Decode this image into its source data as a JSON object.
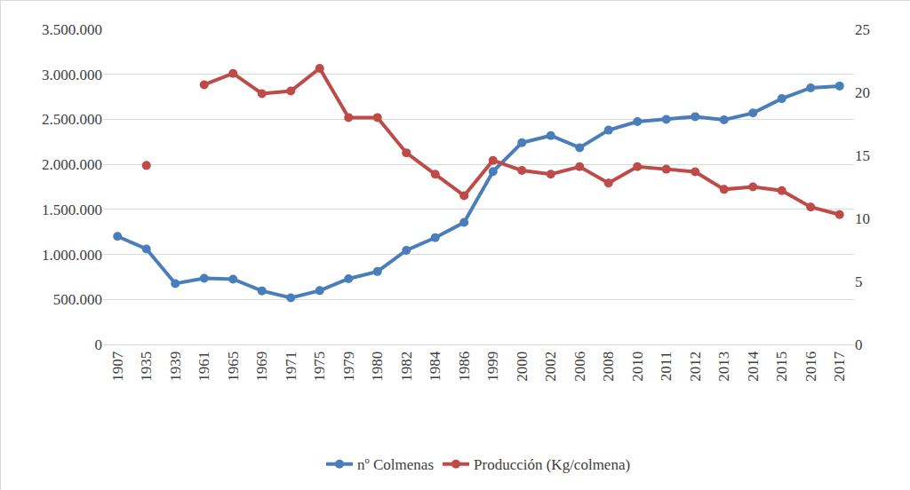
{
  "chart_data": {
    "type": "line",
    "categories": [
      "1907",
      "1935",
      "1939",
      "1961",
      "1965",
      "1969",
      "1971",
      "1975",
      "1979",
      "1980",
      "1982",
      "1984",
      "1986",
      "1999",
      "2000",
      "2002",
      "2006",
      "2008",
      "2010",
      "2011",
      "2012",
      "2013",
      "2014",
      "2015",
      "2016",
      "2017"
    ],
    "series": [
      {
        "name": "nº Colmenas",
        "color": "#4a7ebb",
        "marker": "circle",
        "axis": "y",
        "values": [
          1200000,
          1060000,
          676000,
          735000,
          725000,
          595000,
          518000,
          598000,
          730000,
          810000,
          1045000,
          1185000,
          1355000,
          1920000,
          2240000,
          2320000,
          2185000,
          2380000,
          2475000,
          2500000,
          2530000,
          2495000,
          2570000,
          2730000,
          2850000,
          2870000
        ]
      },
      {
        "name": "Producción (Kg/colmena)",
        "color": "#be4b48",
        "marker": "circle",
        "axis": "y2",
        "values": [
          null,
          14.2,
          null,
          20.6,
          21.5,
          19.9,
          20.1,
          21.9,
          18.0,
          18.0,
          15.2,
          13.5,
          11.8,
          14.6,
          13.8,
          13.5,
          14.1,
          12.8,
          14.1,
          13.9,
          13.7,
          12.3,
          12.5,
          12.2,
          10.9,
          10.3
        ]
      }
    ],
    "ylim": [
      0,
      3500000
    ],
    "yticks": [
      0,
      {
        "value": 500000,
        "label": "500.000"
      },
      {
        "value": 1000000,
        "label": "1.000.000"
      },
      {
        "value": 1500000,
        "label": "1.500.000"
      },
      {
        "value": 2000000,
        "label": "2.000.000"
      },
      {
        "value": 2500000,
        "label": "2.500.000"
      },
      {
        "value": 3000000,
        "label": "3.000.000"
      },
      {
        "value": 3500000,
        "label": "3.500.000"
      }
    ],
    "y2lim": [
      0,
      25
    ],
    "y2ticks": [
      0,
      5,
      10,
      15,
      20,
      25
    ],
    "grid": true,
    "legend": "bottom"
  }
}
